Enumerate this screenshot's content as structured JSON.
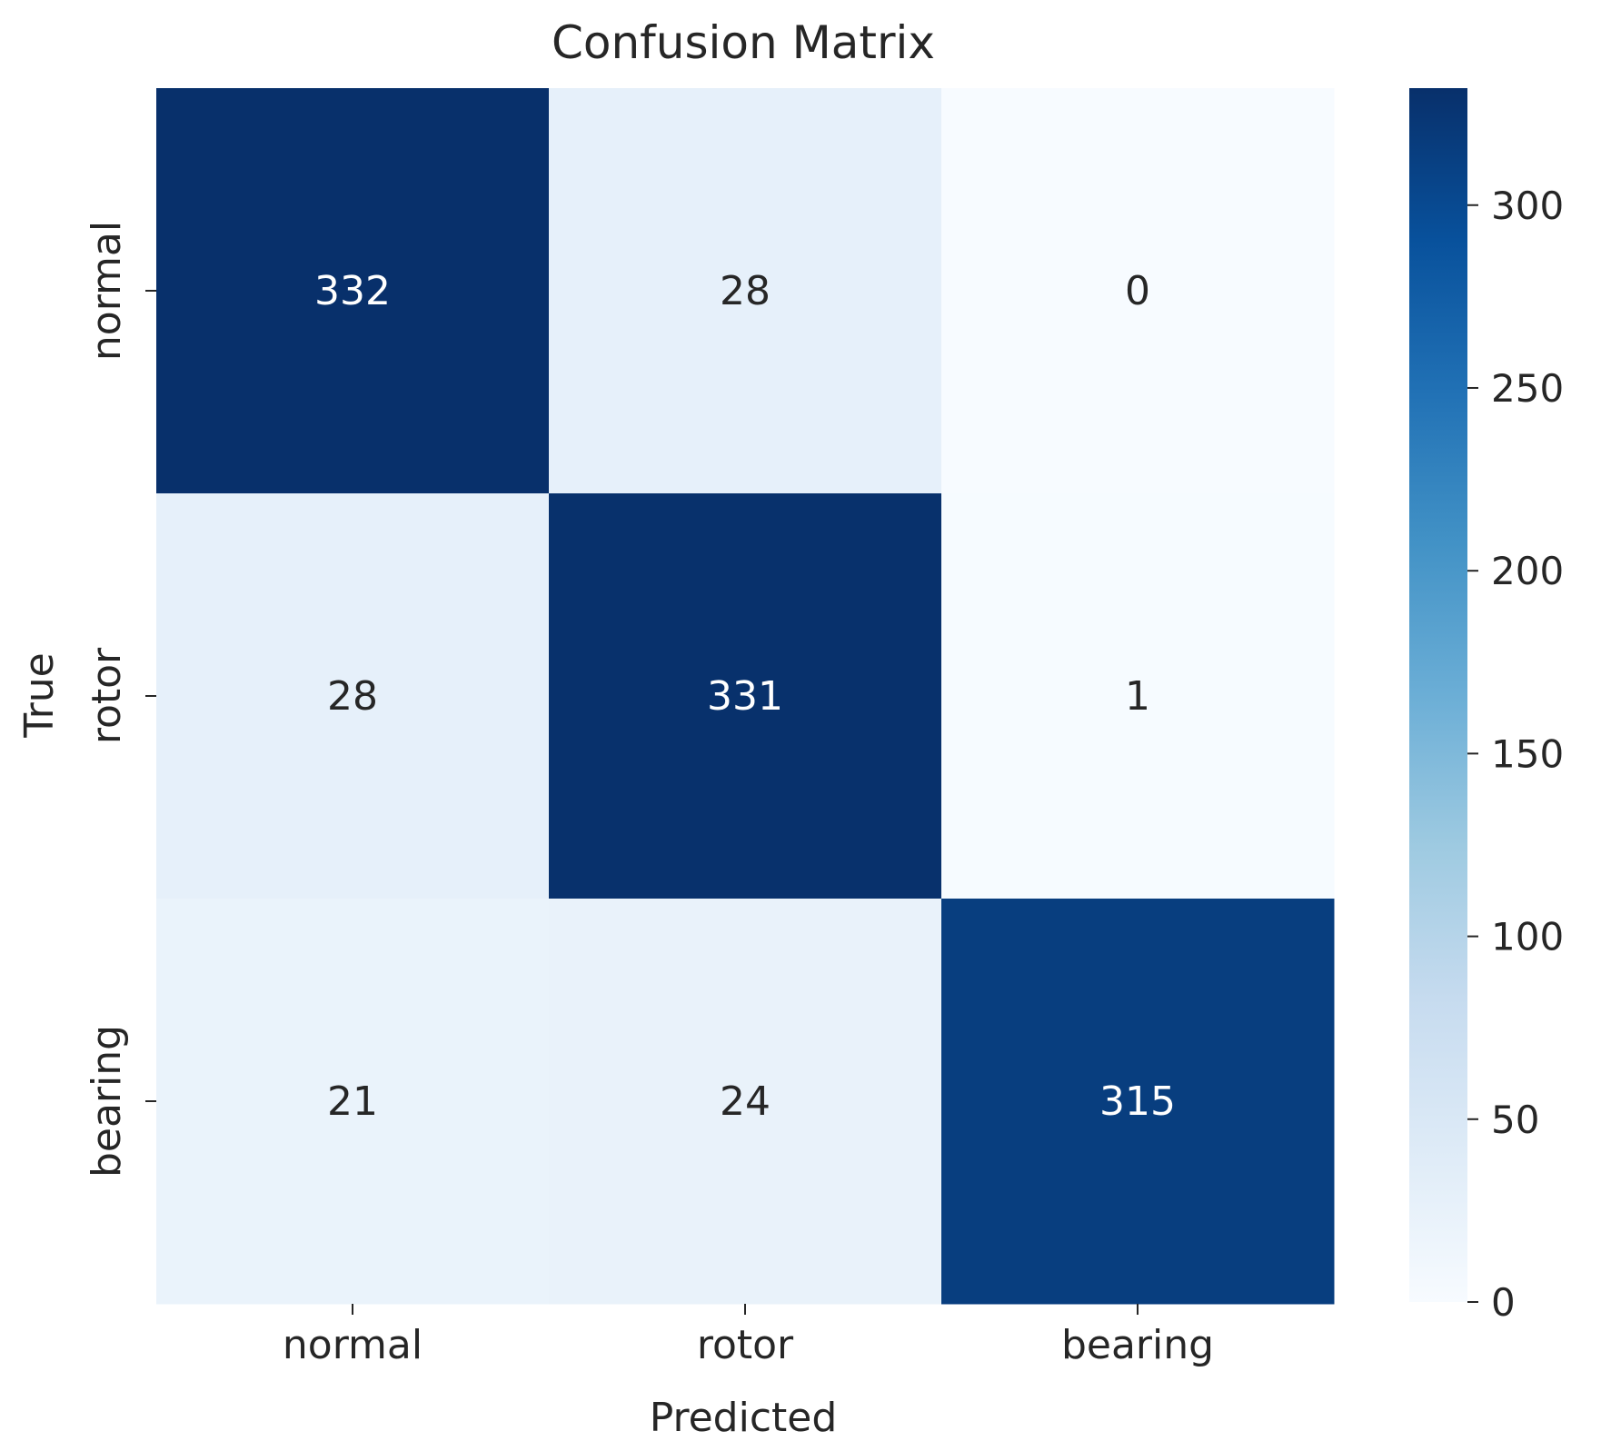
{
  "chart_data": {
    "type": "heatmap",
    "title": "Confusion Matrix",
    "xlabel": "Predicted",
    "ylabel": "True",
    "x_categories": [
      "normal",
      "rotor",
      "bearing"
    ],
    "y_categories": [
      "normal",
      "rotor",
      "bearing"
    ],
    "values": [
      [
        332,
        28,
        0
      ],
      [
        28,
        331,
        1
      ],
      [
        21,
        24,
        315
      ]
    ],
    "colormap": "Blues",
    "colorbar": {
      "range": [
        0,
        332
      ],
      "ticks": [
        0,
        50,
        100,
        150,
        200,
        250,
        300
      ],
      "tick_labels": [
        "0",
        "50",
        "100",
        "150",
        "200",
        "250",
        "300"
      ]
    },
    "colors": {
      "low": "#f7fbff",
      "high": "#08306b",
      "text_dark": "#262626",
      "text_light": "#ffffff"
    }
  }
}
